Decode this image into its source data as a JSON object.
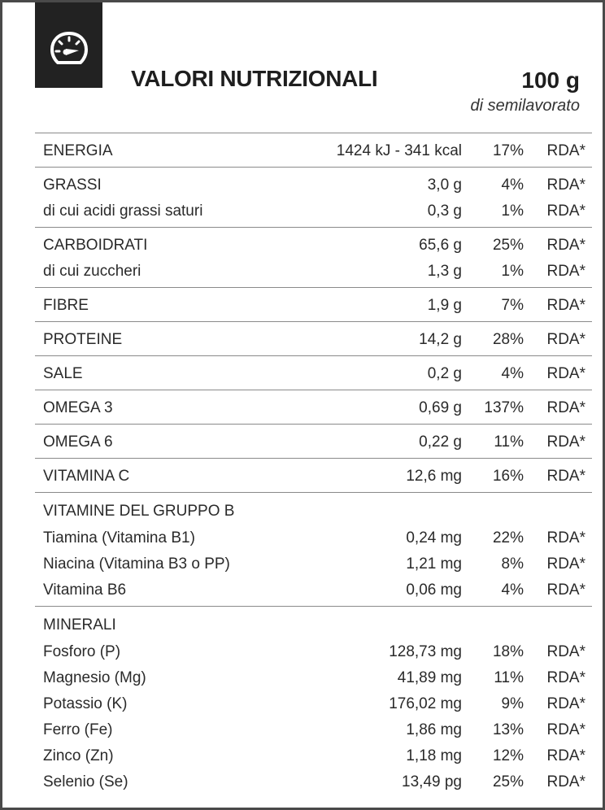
{
  "header": {
    "icon": "speedometer-icon",
    "title": "VALORI NUTRIZIONALI",
    "quantity": "100 g",
    "quantity_sub": "di semilavorato"
  },
  "colors": {
    "badge": "#222222",
    "text": "#1e1e1e",
    "rule": "#8a8a8a",
    "border": "#4a4a4a"
  },
  "groups": [
    {
      "rows": [
        {
          "name": "ENERGIA",
          "value": "1424 kJ - 341 kcal",
          "pct": "17%",
          "rda": "RDA*"
        }
      ]
    },
    {
      "rows": [
        {
          "name": "GRASSI",
          "value": "3,0 g",
          "pct": "4%",
          "rda": "RDA*"
        },
        {
          "name": "di cui acidi grassi saturi",
          "value": "0,3 g",
          "pct": "1%",
          "rda": "RDA*"
        }
      ]
    },
    {
      "rows": [
        {
          "name": "CARBOIDRATI",
          "value": "65,6 g",
          "pct": "25%",
          "rda": "RDA*"
        },
        {
          "name": "di cui zuccheri",
          "value": "1,3 g",
          "pct": "1%",
          "rda": "RDA*"
        }
      ]
    },
    {
      "rows": [
        {
          "name": "FIBRE",
          "value": "1,9 g",
          "pct": "7%",
          "rda": "RDA*"
        }
      ]
    },
    {
      "rows": [
        {
          "name": "PROTEINE",
          "value": "14,2 g",
          "pct": "28%",
          "rda": "RDA*"
        }
      ]
    },
    {
      "rows": [
        {
          "name": "SALE",
          "value": "0,2 g",
          "pct": "4%",
          "rda": "RDA*"
        }
      ]
    },
    {
      "rows": [
        {
          "name": "OMEGA 3",
          "value": "0,69 g",
          "pct": "137%",
          "rda": "RDA*"
        }
      ]
    },
    {
      "rows": [
        {
          "name": "OMEGA 6",
          "value": "0,22 g",
          "pct": "11%",
          "rda": "RDA*"
        }
      ]
    },
    {
      "rows": [
        {
          "name": "VITAMINA C",
          "value": "12,6 mg",
          "pct": "16%",
          "rda": "RDA*"
        }
      ]
    },
    {
      "rows": [
        {
          "name": "VITAMINE DEL GRUPPO B",
          "value": "",
          "pct": "",
          "rda": ""
        },
        {
          "name": "Tiamina (Vitamina B1)",
          "value": "0,24 mg",
          "pct": "22%",
          "rda": "RDA*"
        },
        {
          "name": "Niacina (Vitamina B3 o PP)",
          "value": "1,21 mg",
          "pct": "8%",
          "rda": "RDA*"
        },
        {
          "name": "Vitamina B6",
          "value": "0,06 mg",
          "pct": "4%",
          "rda": "RDA*"
        }
      ]
    },
    {
      "rows": [
        {
          "name": "MINERALI",
          "value": "",
          "pct": "",
          "rda": ""
        },
        {
          "name": "Fosforo (P)",
          "value": "128,73 mg",
          "pct": "18%",
          "rda": "RDA*"
        },
        {
          "name": "Magnesio (Mg)",
          "value": "41,89 mg",
          "pct": "11%",
          "rda": "RDA*"
        },
        {
          "name": "Potassio (K)",
          "value": "176,02 mg",
          "pct": "9%",
          "rda": "RDA*"
        },
        {
          "name": "Ferro (Fe)",
          "value": "1,86 mg",
          "pct": "13%",
          "rda": "RDA*"
        },
        {
          "name": "Zinco (Zn)",
          "value": "1,18 mg",
          "pct": "12%",
          "rda": "RDA*"
        },
        {
          "name": "Selenio (Se)",
          "value": "13,49 pg",
          "pct": "25%",
          "rda": "RDA*"
        }
      ]
    }
  ]
}
